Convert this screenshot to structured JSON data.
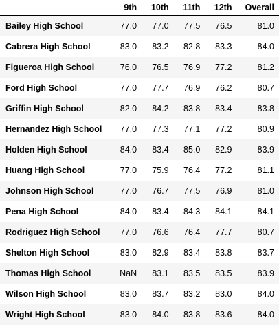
{
  "table": {
    "columns": [
      "",
      "9th",
      "10th",
      "11th",
      "12th",
      "Overall"
    ],
    "rows": [
      {
        "school": "Bailey High School",
        "g9": "77.0",
        "g10": "77.0",
        "g11": "77.5",
        "g12": "76.5",
        "overall": "81.0"
      },
      {
        "school": "Cabrera High School",
        "g9": "83.0",
        "g10": "83.2",
        "g11": "82.8",
        "g12": "83.3",
        "overall": "84.0"
      },
      {
        "school": "Figueroa High School",
        "g9": "76.0",
        "g10": "76.5",
        "g11": "76.9",
        "g12": "77.2",
        "overall": "81.2"
      },
      {
        "school": "Ford High School",
        "g9": "77.0",
        "g10": "77.7",
        "g11": "76.9",
        "g12": "76.2",
        "overall": "80.7"
      },
      {
        "school": "Griffin High School",
        "g9": "82.0",
        "g10": "84.2",
        "g11": "83.8",
        "g12": "83.4",
        "overall": "83.8"
      },
      {
        "school": "Hernandez High School",
        "g9": "77.0",
        "g10": "77.3",
        "g11": "77.1",
        "g12": "77.2",
        "overall": "80.9"
      },
      {
        "school": "Holden High School",
        "g9": "84.0",
        "g10": "83.4",
        "g11": "85.0",
        "g12": "82.9",
        "overall": "83.9"
      },
      {
        "school": "Huang High School",
        "g9": "77.0",
        "g10": "75.9",
        "g11": "76.4",
        "g12": "77.2",
        "overall": "81.1"
      },
      {
        "school": "Johnson High School",
        "g9": "77.0",
        "g10": "76.7",
        "g11": "77.5",
        "g12": "76.9",
        "overall": "81.0"
      },
      {
        "school": "Pena High School",
        "g9": "84.0",
        "g10": "83.4",
        "g11": "84.3",
        "g12": "84.1",
        "overall": "84.1"
      },
      {
        "school": "Rodriguez High School",
        "g9": "77.0",
        "g10": "76.6",
        "g11": "76.4",
        "g12": "77.7",
        "overall": "80.7"
      },
      {
        "school": "Shelton High School",
        "g9": "83.0",
        "g10": "82.9",
        "g11": "83.4",
        "g12": "83.8",
        "overall": "83.7"
      },
      {
        "school": "Thomas High School",
        "g9": "NaN",
        "g10": "83.1",
        "g11": "83.5",
        "g12": "83.5",
        "overall": "83.9"
      },
      {
        "school": "Wilson High School",
        "g9": "83.0",
        "g10": "83.7",
        "g11": "83.2",
        "g12": "83.0",
        "overall": "84.0"
      },
      {
        "school": "Wright High School",
        "g9": "83.0",
        "g10": "84.0",
        "g11": "83.8",
        "g12": "83.6",
        "overall": "84.0"
      }
    ]
  }
}
